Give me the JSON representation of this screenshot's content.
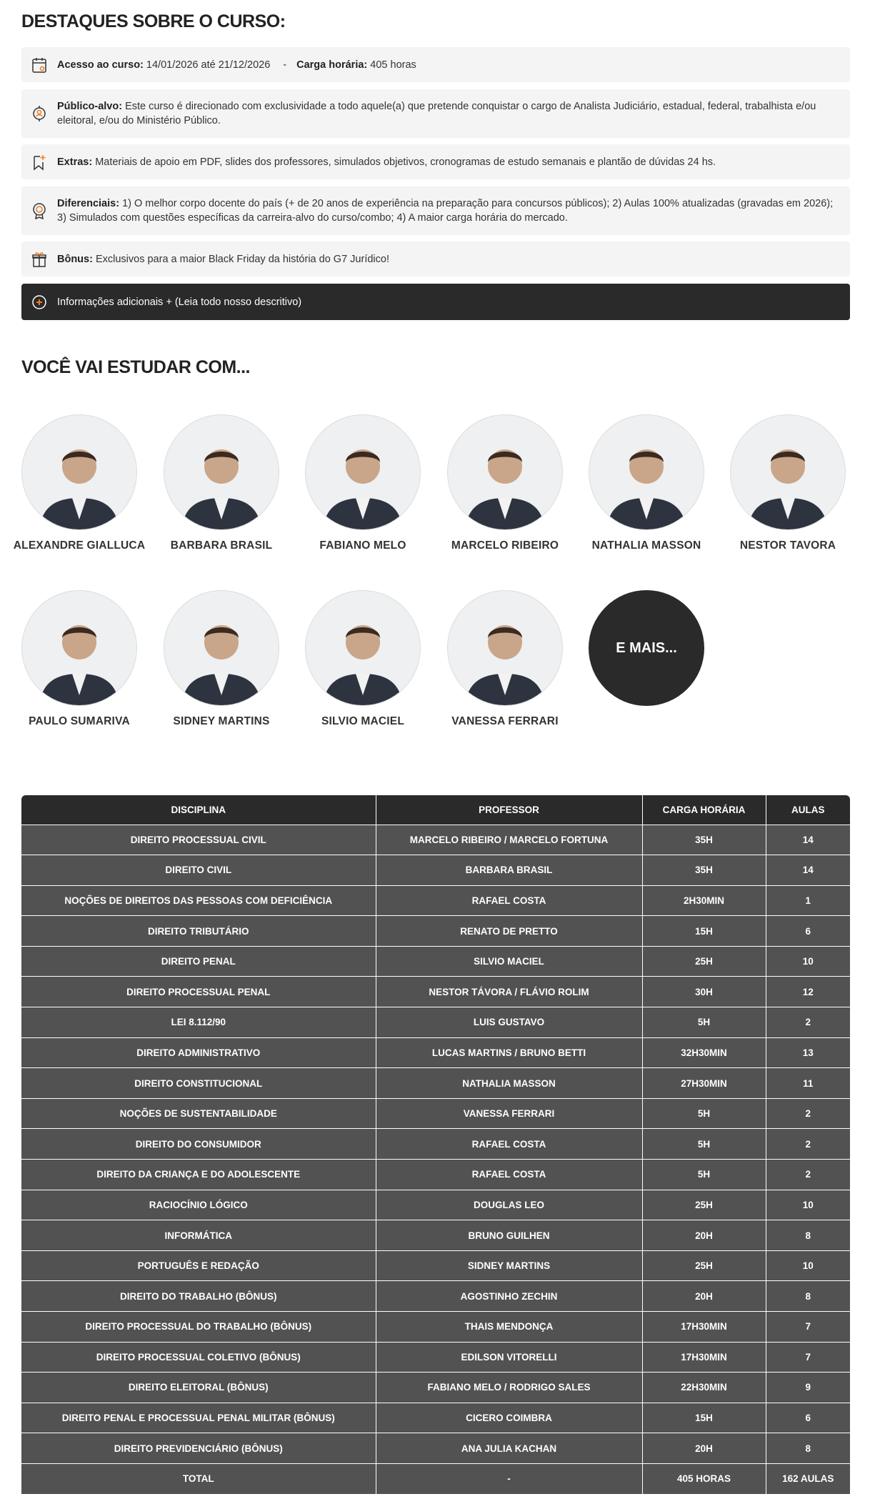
{
  "highlights": {
    "title": "DESTAQUES SOBRE O CURSO:",
    "items": [
      {
        "icon": "calendar-icon",
        "label": "Acesso ao curso:",
        "text": " 14/01/2026 até 21/12/2026",
        "sep": "-",
        "label2": "Carga horária:",
        "text2": " 405 horas"
      },
      {
        "icon": "target-audience-icon",
        "label": "Público-alvo:",
        "text": " Este curso é direcionado com exclusividade a todo aquele(a) que pretende conquistar o cargo de Analista Judiciário, estadual, federal, trabalhista e/ou eleitoral, e/ou do Ministério Público."
      },
      {
        "icon": "bookmark-plus-icon",
        "label": "Extras:",
        "text": " Materiais de apoio em PDF, slides dos professores, simulados objetivos, cronogramas de estudo semanais e plantão de dúvidas 24 hs."
      },
      {
        "icon": "medal-icon",
        "label": "Diferenciais:",
        "text": " 1) O melhor corpo docente do país (+ de 20 anos de experiência na preparação para concursos públicos); 2) Aulas 100% atualizadas (gravadas em 2026); 3) Simulados com questões específicas da carreira-alvo do curso/combo; 4) A maior carga horária do mercado."
      },
      {
        "icon": "gift-icon",
        "label": "Bônus:",
        "text": " Exclusivos para a maior Black Friday da história do G7 Jurídico!"
      }
    ],
    "more_info": "Informações adicionais + (Leia todo nosso descritivo)"
  },
  "teachers": {
    "title": "VOCÊ VAI ESTUDAR COM...",
    "list": [
      "ALEXANDRE GIALLUCA",
      "BARBARA BRASIL",
      "FABIANO MELO",
      "MARCELO RIBEIRO",
      "NATHALIA MASSON",
      "NESTOR TAVORA",
      "PAULO SUMARIVA",
      "SIDNEY MARTINS",
      "SILVIO MACIEL",
      "VANESSA FERRARI"
    ],
    "more": "E MAIS..."
  },
  "table": {
    "headers": [
      "DISCIPLINA",
      "PROFESSOR",
      "CARGA HORÁRIA",
      "AULAS"
    ],
    "rows": [
      [
        "DIREITO PROCESSUAL CIVIL",
        "MARCELO RIBEIRO / MARCELO FORTUNA",
        "35H",
        "14"
      ],
      [
        "DIREITO CIVIL",
        "BARBARA BRASIL",
        "35H",
        "14"
      ],
      [
        "NOÇÕES DE DIREITOS DAS PESSOAS COM DEFICIÊNCIA",
        "RAFAEL COSTA",
        "2H30MIN",
        "1"
      ],
      [
        "DIREITO TRIBUTÁRIO",
        "RENATO DE PRETTO",
        "15H",
        "6"
      ],
      [
        "DIREITO PENAL",
        "SILVIO MACIEL",
        "25H",
        "10"
      ],
      [
        "DIREITO PROCESSUAL PENAL",
        "NESTOR TÁVORA / FLÁVIO ROLIM",
        "30H",
        "12"
      ],
      [
        "LEI 8.112/90",
        "LUIS GUSTAVO",
        "5H",
        "2"
      ],
      [
        "DIREITO ADMINISTRATIVO",
        "LUCAS MARTINS / BRUNO BETTI",
        "32H30MIN",
        "13"
      ],
      [
        "DIREITO CONSTITUCIONAL",
        "NATHALIA MASSON",
        "27H30MIN",
        "11"
      ],
      [
        "NOÇÕES DE SUSTENTABILIDADE",
        "VANESSA FERRARI",
        "5H",
        "2"
      ],
      [
        "DIREITO DO CONSUMIDOR",
        "RAFAEL COSTA",
        "5H",
        "2"
      ],
      [
        "DIREITO DA CRIANÇA E DO ADOLESCENTE",
        "RAFAEL COSTA",
        "5H",
        "2"
      ],
      [
        "RACIOCÍNIO LÓGICO",
        "DOUGLAS LEO",
        "25H",
        "10"
      ],
      [
        "INFORMÁTICA",
        "BRUNO GUILHEN",
        "20H",
        "8"
      ],
      [
        "PORTUGUÊS E REDAÇÃO",
        "SIDNEY MARTINS",
        "25H",
        "10"
      ],
      [
        "DIREITO DO TRABALHO (BÔNUS)",
        "AGOSTINHO ZECHIN",
        "20H",
        "8"
      ],
      [
        "DIREITO PROCESSUAL DO TRABALHO (BÔNUS)",
        "THAIS MENDONÇA",
        "17H30MIN",
        "7"
      ],
      [
        "DIREITO PROCESSUAL COLETIVO (BÔNUS)",
        "EDILSON VITORELLI",
        "17H30MIN",
        "7"
      ],
      [
        "DIREITO ELEITORAL (BÔNUS)",
        "FABIANO MELO / RODRIGO SALES",
        "22H30MIN",
        "9"
      ],
      [
        "DIREITO PENAL E PROCESSUAL PENAL MILITAR (BÔNUS)",
        "CICERO COIMBRA",
        "15H",
        "6"
      ],
      [
        "DIREITO PREVIDENCIÁRIO (BÔNUS)",
        "ANA JULIA KACHAN",
        "20H",
        "8"
      ],
      [
        "TOTAL",
        "-",
        "405 HORAS",
        "162 AULAS"
      ]
    ]
  },
  "colors": {
    "accent": "#f07b22",
    "dark": "#2a2a2a",
    "row": "#525252",
    "box": "#f4f4f4"
  }
}
